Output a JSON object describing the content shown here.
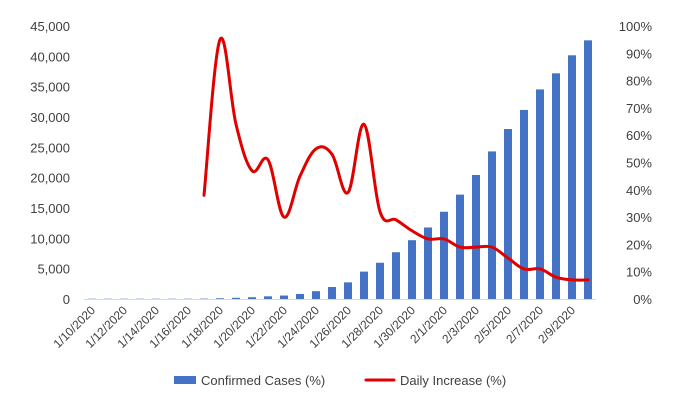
{
  "chart_data": {
    "type": "bar+line",
    "categories": [
      "1/10/2020",
      "1/11/2020",
      "1/12/2020",
      "1/13/2020",
      "1/14/2020",
      "1/15/2020",
      "1/16/2020",
      "1/17/2020",
      "1/18/2020",
      "1/19/2020",
      "1/20/2020",
      "1/21/2020",
      "1/22/2020",
      "1/23/2020",
      "1/24/2020",
      "1/25/2020",
      "1/26/2020",
      "1/27/2020",
      "1/28/2020",
      "1/29/2020",
      "1/30/2020",
      "1/31/2020",
      "2/1/2020",
      "2/2/2020",
      "2/3/2020",
      "2/4/2020",
      "2/5/2020",
      "2/6/2020",
      "2/7/2020",
      "2/8/2020",
      "2/9/2020",
      "2/10/2020"
    ],
    "x_tick_labels": [
      "1/10/2020",
      "1/12/2020",
      "1/14/2020",
      "1/16/2020",
      "1/18/2020",
      "1/20/2020",
      "1/22/2020",
      "1/24/2020",
      "1/26/2020",
      "1/28/2020",
      "1/30/2020",
      "2/1/2020",
      "2/3/2020",
      "2/5/2020",
      "2/7/2020",
      "2/9/2020"
    ],
    "series": [
      {
        "name": "Confirmed Cases (%)",
        "type": "bar",
        "axis": "left",
        "color": "#4472C4",
        "values": [
          41,
          41,
          41,
          41,
          41,
          41,
          45,
          62,
          121,
          198,
          291,
          440,
          571,
          830,
          1287,
          1975,
          2744,
          4515,
          5974,
          7711,
          9692,
          11791,
          14380,
          17205,
          20438,
          24324,
          28018,
          31161,
          34546,
          37198,
          40171,
          42638
        ]
      },
      {
        "name": "Daily Increase (%)",
        "type": "line",
        "axis": "right",
        "color": "#E00000",
        "values": [
          null,
          null,
          null,
          null,
          null,
          null,
          null,
          0.38,
          0.95,
          0.64,
          0.47,
          0.51,
          0.3,
          0.45,
          0.55,
          0.53,
          0.39,
          0.64,
          0.32,
          0.29,
          0.25,
          0.22,
          0.22,
          0.19,
          0.19,
          0.19,
          0.15,
          0.11,
          0.11,
          0.08,
          0.07,
          0.07
        ]
      }
    ],
    "y_left": {
      "ylim": [
        0,
        45000
      ],
      "ticks": [
        "0",
        "5,000",
        "10,000",
        "15,000",
        "20,000",
        "25,000",
        "30,000",
        "35,000",
        "40,000",
        "45,000"
      ]
    },
    "y_right": {
      "ylim": [
        0,
        1.0
      ],
      "ticks": [
        "0%",
        "10%",
        "20%",
        "30%",
        "40%",
        "50%",
        "60%",
        "70%",
        "80%",
        "90%",
        "100%"
      ]
    },
    "legend_position": "bottom",
    "grid": false
  }
}
